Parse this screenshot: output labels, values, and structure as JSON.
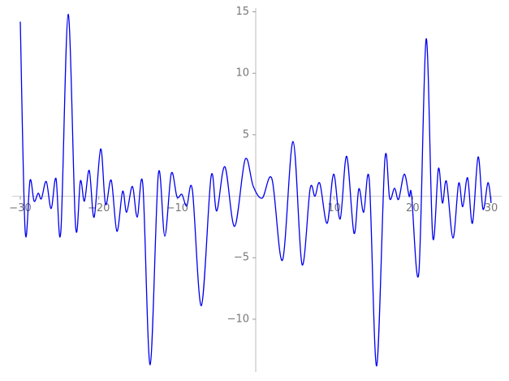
{
  "chart_data": {
    "type": "line",
    "x": [
      -30.0,
      -29.38,
      -28.76,
      -28.24,
      -27.72,
      -27.31,
      -26.69,
      -26.07,
      -25.45,
      -24.83,
      -23.9,
      -22.96,
      -22.34,
      -21.83,
      -21.21,
      -20.59,
      -19.76,
      -19.14,
      -18.41,
      -17.69,
      -16.96,
      -16.45,
      -15.72,
      -15.1,
      -14.38,
      -13.45,
      -12.41,
      -11.59,
      -10.76,
      -10.03,
      -9.41,
      -8.79,
      -8.07,
      -6.93,
      -5.69,
      -4.97,
      -3.93,
      -2.69,
      -1.34,
      -0.31,
      0.83,
      2.07,
      3.41,
      4.76,
      5.9,
      6.93,
      7.55,
      8.17,
      9.1,
      9.93,
      10.76,
      11.59,
      12.52,
      13.14,
      13.76,
      14.48,
      15.41,
      16.45,
      17.07,
      17.69,
      18.21,
      18.93,
      19.55,
      19.86,
      20.79,
      21.72,
      22.55,
      23.28,
      23.79,
      24.31,
      25.14,
      25.86,
      26.38,
      27.0,
      27.62,
      28.34,
      28.96,
      29.59,
      30.0
    ],
    "series": [
      {
        "color": "#0000ee",
        "values": [
          14.2,
          -2.85,
          1.3,
          -0.4,
          0.25,
          -0.2,
          1.2,
          -1.0,
          1.45,
          -2.85,
          14.8,
          -2.4,
          1.25,
          -0.4,
          2.1,
          -1.7,
          3.85,
          -0.65,
          1.3,
          -2.85,
          0.4,
          -1.3,
          0.8,
          -1.7,
          0.9,
          -13.7,
          1.8,
          -3.25,
          1.85,
          -0.05,
          0.15,
          -0.8,
          0.5,
          -8.9,
          1.6,
          -1.2,
          2.4,
          -2.45,
          3.0,
          0.8,
          -0.15,
          1.4,
          -5.2,
          4.45,
          -5.55,
          0.6,
          0.0,
          1.05,
          -2.2,
          1.8,
          -1.85,
          3.25,
          -3.0,
          0.6,
          -1.3,
          1.25,
          -13.8,
          2.9,
          -0.2,
          0.65,
          -0.25,
          1.8,
          0.0,
          0.1,
          -6.2,
          12.8,
          -3.25,
          2.25,
          -0.55,
          1.2,
          -3.4,
          1.05,
          -0.85,
          1.5,
          -2.2,
          3.2,
          -1.05,
          1.1,
          -0.55
        ]
      }
    ],
    "xlim": [
      -30,
      30
    ],
    "ylim": [
      -14.3,
      15.3
    ],
    "xticks": [
      {
        "value": -30,
        "label": "−30"
      },
      {
        "value": -20,
        "label": "−20"
      },
      {
        "value": -10,
        "label": "−10"
      },
      10,
      20,
      30
    ],
    "yticks": [
      {
        "value": -10,
        "label": "−10"
      },
      {
        "value": -5,
        "label": "−5"
      },
      5,
      10,
      15
    ]
  }
}
